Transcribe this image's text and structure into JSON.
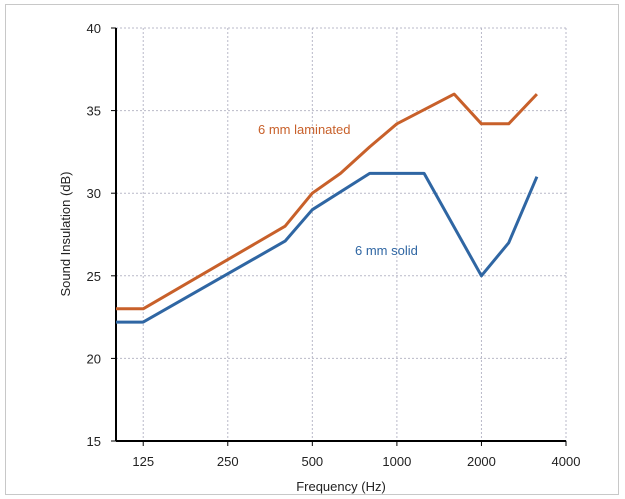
{
  "chart_data": {
    "type": "line",
    "xlabel": "Frequency (Hz)",
    "ylabel": "Sound Insulation (dB)",
    "x_scale": "log2",
    "xlim": [
      100,
      4000
    ],
    "ylim": [
      15,
      40
    ],
    "x_ticks": [
      125,
      250,
      500,
      1000,
      2000,
      4000
    ],
    "y_ticks": [
      15,
      20,
      25,
      30,
      35,
      40
    ],
    "grid": true,
    "series": [
      {
        "name": "6 mm laminated",
        "color": "#c8602a",
        "points": [
          [
            100,
            23
          ],
          [
            125,
            23
          ],
          [
            400,
            28
          ],
          [
            500,
            30
          ],
          [
            630,
            31.2
          ],
          [
            800,
            32.8
          ],
          [
            1000,
            34.2
          ],
          [
            1600,
            36
          ],
          [
            2000,
            34.2
          ],
          [
            2500,
            34.2
          ],
          [
            3150,
            36
          ]
        ]
      },
      {
        "name": "6 mm solid",
        "color": "#2f66a3",
        "points": [
          [
            100,
            22.2
          ],
          [
            125,
            22.2
          ],
          [
            400,
            27.1
          ],
          [
            500,
            29
          ],
          [
            800,
            31.2
          ],
          [
            1250,
            31.2
          ],
          [
            2000,
            25
          ],
          [
            2500,
            27
          ],
          [
            3150,
            31
          ]
        ]
      }
    ]
  }
}
